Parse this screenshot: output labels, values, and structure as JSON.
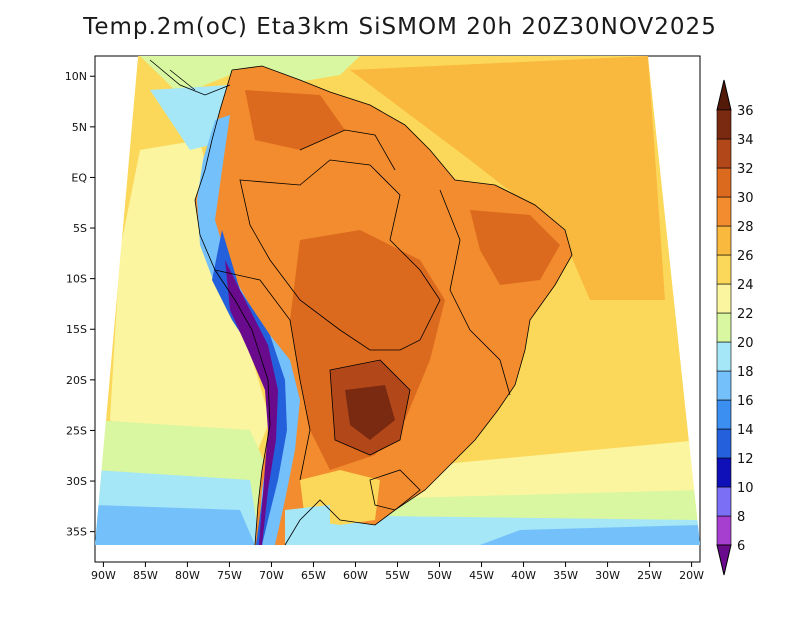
{
  "title": "Temp.2m(oC) Eta3km SiSMOM 20h 20Z30NOV2025",
  "map": {
    "lat_labels": [
      "10N",
      "5N",
      "EQ",
      "5S",
      "10S",
      "15S",
      "20S",
      "25S",
      "30S",
      "35S"
    ],
    "lat_values": [
      10,
      5,
      0,
      -5,
      -10,
      -15,
      -20,
      -25,
      -30,
      -35
    ],
    "lon_labels": [
      "90W",
      "85W",
      "80W",
      "75W",
      "70W",
      "65W",
      "60W",
      "55W",
      "50W",
      "45W",
      "40W",
      "35W",
      "30W",
      "25W",
      "20W"
    ],
    "lon_values": [
      -90,
      -85,
      -80,
      -75,
      -70,
      -65,
      -60,
      -55,
      -50,
      -45,
      -40,
      -35,
      -30,
      -25,
      -20
    ],
    "lat_range": [
      -38,
      12
    ],
    "lon_range": [
      -91,
      -19
    ]
  },
  "colorbar": {
    "unit": "oC",
    "labels": [
      "6",
      "8",
      "10",
      "12",
      "14",
      "16",
      "18",
      "20",
      "22",
      "24",
      "26",
      "28",
      "30",
      "32",
      "34",
      "36"
    ],
    "colors": [
      "#6a0a8c",
      "#a63fd0",
      "#7b6ff5",
      "#1010b8",
      "#2560dc",
      "#3b8ff0",
      "#74c0fa",
      "#a5e6f7",
      "#d8f7a0",
      "#fbf5a0",
      "#fbd85a",
      "#f9b83e",
      "#f28c2e",
      "#dc6a1e",
      "#b2481a",
      "#7a2a10",
      "#531a0a"
    ]
  }
}
